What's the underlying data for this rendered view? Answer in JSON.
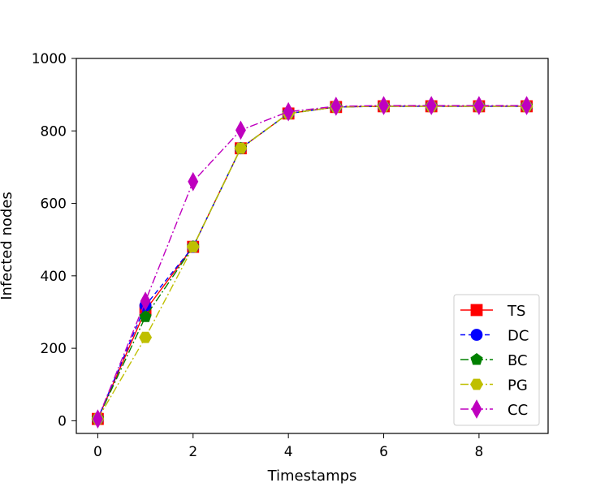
{
  "chart_data": {
    "type": "line",
    "title": "",
    "xlabel": "Timestamps",
    "ylabel": "Infected nodes",
    "xlim": [
      -0.45,
      9.45
    ],
    "ylim": [
      -35,
      1000
    ],
    "x_ticks": [
      0,
      2,
      4,
      6,
      8
    ],
    "y_ticks": [
      0,
      200,
      400,
      600,
      800,
      1000
    ],
    "x_tick_labels": [
      "0",
      "2",
      "4",
      "6",
      "8"
    ],
    "y_tick_labels": [
      "0",
      "200",
      "400",
      "600",
      "800",
      "1000"
    ],
    "grid": false,
    "legend_position": "lower-right",
    "x": [
      0,
      1,
      2,
      3,
      4,
      5,
      6,
      7,
      8,
      9
    ],
    "series": [
      {
        "name": "TS",
        "color": "#ff0000",
        "marker": "square",
        "dash": "",
        "values": [
          5,
          305,
          480,
          752,
          848,
          866,
          868,
          868,
          868,
          868
        ]
      },
      {
        "name": "DC",
        "color": "#0000ff",
        "marker": "circle",
        "dash": "6,4",
        "values": [
          5,
          318,
          480,
          752,
          848,
          866,
          868,
          868,
          868,
          868
        ]
      },
      {
        "name": "BC",
        "color": "#008000",
        "marker": "pentagon",
        "dash": "10,3,2,3",
        "values": [
          5,
          287,
          480,
          752,
          848,
          866,
          868,
          868,
          868,
          868
        ]
      },
      {
        "name": "PG",
        "color": "#bfbf00",
        "marker": "hexagon",
        "dash": "10,3,2,3",
        "values": [
          5,
          230,
          480,
          752,
          848,
          866,
          868,
          868,
          868,
          868
        ]
      },
      {
        "name": "CC",
        "color": "#bf00bf",
        "marker": "diamond",
        "dash": "10,3,2,3",
        "values": [
          5,
          330,
          660,
          802,
          853,
          868,
          870,
          870,
          870,
          870
        ]
      }
    ]
  }
}
